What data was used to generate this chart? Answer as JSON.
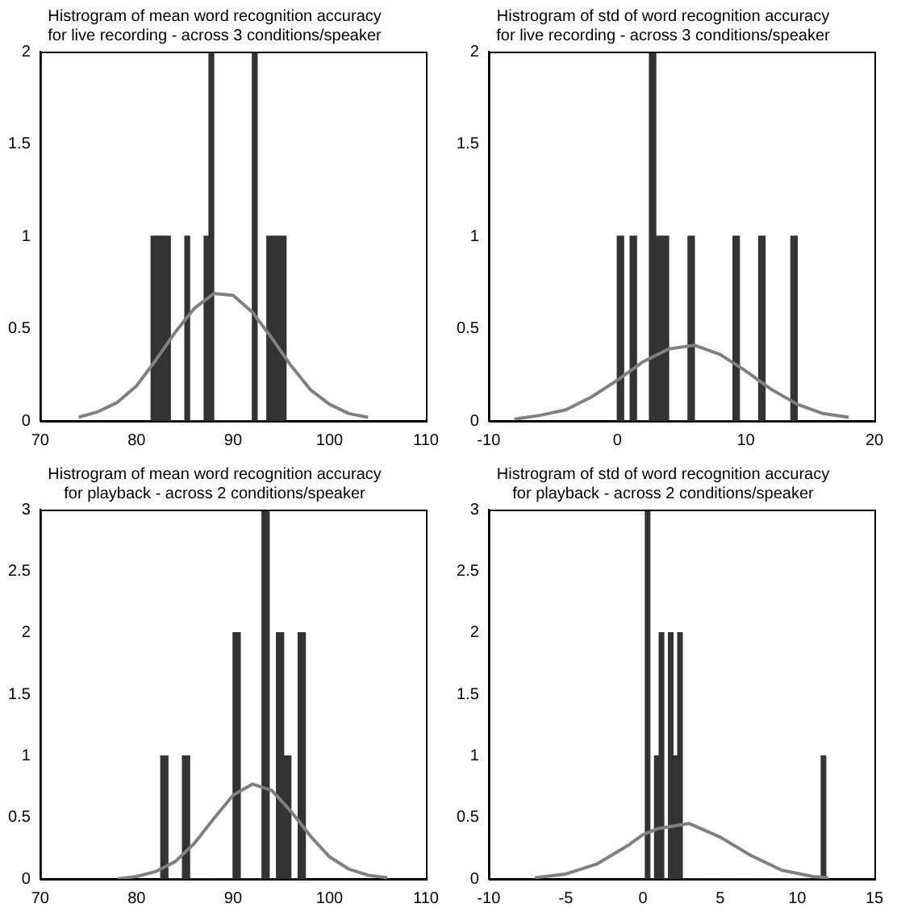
{
  "chart_data": [
    {
      "type": "histogram",
      "title": "Histrogram of mean word recognition accuracy\nfor live recording - across 3 conditions/speaker",
      "xlim": [
        70,
        110
      ],
      "xticks": [
        70,
        80,
        90,
        100,
        110
      ],
      "ylim": [
        0,
        2
      ],
      "yticks": [
        0,
        0.5,
        1,
        1.5,
        2
      ],
      "series": [
        {
          "color": "#333333",
          "bins": [
            81.5,
            82,
            82.5,
            83,
            83.5,
            84,
            84.5,
            85,
            85.5,
            86,
            86.5,
            87,
            87.5,
            88,
            88.5,
            89,
            89.5,
            90,
            90.5,
            91,
            91.5,
            92,
            92.5,
            93,
            93.5,
            94,
            94.5,
            95,
            95.5
          ],
          "values": [
            1,
            1,
            1,
            1,
            0,
            0,
            0,
            1,
            0,
            0,
            0,
            1,
            2,
            0,
            0,
            0,
            0,
            0,
            0,
            0,
            0,
            2,
            0,
            0,
            1,
            1,
            1,
            1
          ]
        },
        {
          "type": "line",
          "color": "#808080",
          "marker": "none",
          "x": [
            74,
            76,
            78,
            80,
            82,
            84,
            86,
            88,
            90,
            92,
            94,
            96,
            98,
            100,
            102,
            104
          ],
          "values": [
            0.02,
            0.05,
            0.1,
            0.19,
            0.33,
            0.48,
            0.61,
            0.69,
            0.68,
            0.59,
            0.45,
            0.3,
            0.17,
            0.09,
            0.04,
            0.02
          ]
        }
      ]
    },
    {
      "type": "histogram",
      "title": "Histrogram of std of word recognition accuracy\nfor live recording - across 3 conditions/speaker",
      "xlim": [
        -10,
        20
      ],
      "xticks": [
        -10,
        0,
        10,
        20
      ],
      "ylim": [
        0,
        2
      ],
      "yticks": [
        0,
        0.5,
        1,
        1.5,
        2
      ],
      "series": [
        {
          "color": "#333333",
          "bins": [
            0,
            0.5,
            1,
            1.5,
            2,
            2.5,
            3,
            3.5,
            4,
            4.5,
            5,
            5.5,
            6,
            6.5,
            7,
            7.5,
            8,
            8.5,
            9,
            9.5,
            10,
            10.5,
            11,
            11.5,
            12,
            12.5,
            13,
            13.5,
            14
          ],
          "values": [
            1,
            0,
            1,
            0,
            0,
            2,
            1,
            1,
            0,
            0,
            0,
            1,
            0,
            0,
            0,
            0,
            0,
            0,
            1,
            0,
            0,
            0,
            1,
            0,
            0,
            0,
            0,
            1
          ]
        },
        {
          "type": "line",
          "color": "#808080",
          "marker": "none",
          "x": [
            -8,
            -6,
            -4,
            -2,
            0,
            2,
            4,
            6,
            8,
            10,
            12,
            14,
            16,
            18
          ],
          "values": [
            0.01,
            0.03,
            0.06,
            0.13,
            0.22,
            0.32,
            0.39,
            0.41,
            0.36,
            0.27,
            0.17,
            0.09,
            0.04,
            0.02
          ]
        }
      ]
    },
    {
      "type": "histogram",
      "title": "Histrogram of mean word recognition accuracy\nfor playback - across 2 conditions/speaker",
      "xlim": [
        70,
        110
      ],
      "xticks": [
        70,
        80,
        90,
        100,
        110
      ],
      "ylim": [
        0,
        3
      ],
      "yticks": [
        0,
        0.5,
        1,
        1.5,
        2,
        2.5,
        3
      ],
      "series": [
        {
          "color": "#333333",
          "bins": [
            82.5,
            83.25,
            84,
            84.75,
            85.5,
            86.25,
            87,
            87.75,
            88.5,
            89.25,
            90,
            90.75,
            91.5,
            92.25,
            93,
            93.75,
            94.5,
            95.25,
            96,
            96.75,
            97.5
          ],
          "values": [
            1,
            0,
            0,
            1,
            0,
            0,
            0,
            0,
            0,
            0,
            2,
            0,
            0,
            0,
            3,
            0,
            2,
            1,
            0,
            2
          ]
        },
        {
          "type": "line",
          "color": "#808080",
          "marker": "none",
          "x": [
            78,
            80,
            82,
            84,
            86,
            88,
            90,
            92,
            94,
            96,
            98,
            100,
            102,
            104,
            106
          ],
          "values": [
            0,
            0.02,
            0.06,
            0.14,
            0.29,
            0.49,
            0.68,
            0.77,
            0.72,
            0.55,
            0.35,
            0.18,
            0.08,
            0.03,
            0.01
          ]
        }
      ]
    },
    {
      "type": "histogram",
      "title": "Histrogram of std of word recognition accuracy\nfor playback - across 2 conditions/speaker",
      "xlim": [
        -10,
        15
      ],
      "xticks": [
        -10,
        -5,
        0,
        5,
        10,
        15
      ],
      "ylim": [
        0,
        3
      ],
      "yticks": [
        0,
        0.5,
        1,
        1.5,
        2,
        2.5,
        3
      ],
      "series": [
        {
          "color": "#333333",
          "bins": [
            0.15,
            0.45,
            0.75,
            1.05,
            1.35,
            1.65,
            1.95,
            2.25,
            2.55,
            2.85,
            3.15,
            3.45,
            3.75,
            4.05,
            4.35,
            4.65,
            4.95,
            5.25,
            5.55,
            5.85,
            6.15,
            6.45,
            6.75,
            7.05,
            7.35,
            7.65,
            7.95,
            8.25,
            8.55,
            8.85,
            9.15,
            9.45,
            9.75,
            10.05,
            10.35,
            10.65,
            10.95,
            11.25,
            11.55,
            11.85
          ],
          "values": [
            3,
            0,
            1,
            2,
            0,
            2,
            1,
            2,
            0,
            0,
            0,
            0,
            0,
            0,
            0,
            0,
            0,
            0,
            0,
            0,
            0,
            0,
            0,
            0,
            0,
            0,
            0,
            0,
            0,
            0,
            0,
            0,
            0,
            0,
            0,
            0,
            0,
            0,
            1
          ]
        },
        {
          "type": "line",
          "color": "#808080",
          "marker": "none",
          "x": [
            -7,
            -5,
            -3,
            -1,
            0,
            1,
            3,
            5,
            7,
            9,
            11,
            12
          ],
          "values": [
            0.01,
            0.04,
            0.12,
            0.27,
            0.36,
            0.41,
            0.45,
            0.34,
            0.19,
            0.07,
            0.02,
            0.01
          ]
        }
      ]
    }
  ]
}
